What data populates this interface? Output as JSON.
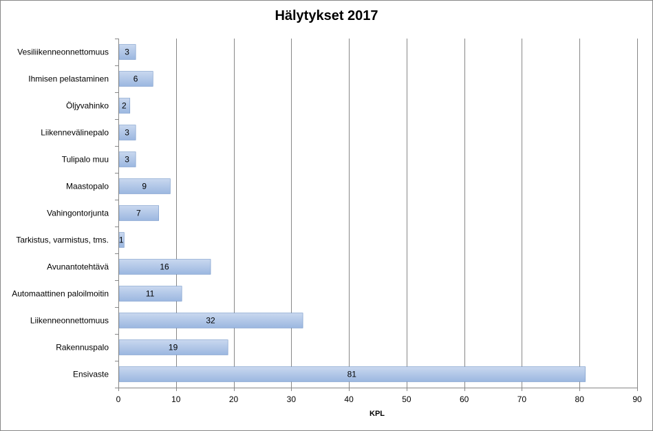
{
  "chart_data": {
    "type": "bar",
    "orientation": "horizontal",
    "title": "Hälytykset 2017",
    "xlabel": "KPL",
    "ylabel": "",
    "categories": [
      "Vesiliikenneonnettomuus",
      "Ihmisen pelastaminen",
      "Öljyvahinko",
      "Liikennevälinepalo",
      "Tulipalo muu",
      "Maastopalo",
      "Vahingontorjunta",
      "Tarkistus, varmistus, tms.",
      "Avunantotehtävä",
      "Automaattinen paloilmoitin",
      "Liikenneonnettomuus",
      "Rakennuspalo",
      "Ensivaste"
    ],
    "values": [
      3,
      6,
      2,
      3,
      3,
      9,
      7,
      1,
      16,
      11,
      32,
      19,
      81
    ],
    "xlim": [
      0,
      90
    ],
    "xticks": [
      0,
      10,
      20,
      30,
      40,
      50,
      60,
      70,
      80,
      90
    ],
    "grid": "vertical",
    "legend": "none",
    "bar_color": "#9bb7e0",
    "bar_color_light": "#c9d8ef",
    "bar_edge": "#6f93c6"
  }
}
